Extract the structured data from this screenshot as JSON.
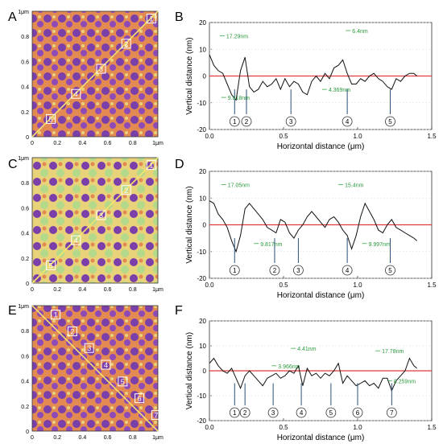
{
  "panel_letters": [
    "A",
    "B",
    "C",
    "D",
    "E",
    "F"
  ],
  "afm": {
    "unit_label": "1μm",
    "x_ticks": [
      "0",
      "0.2",
      "0.4",
      "0.6",
      "0.8",
      "1μm"
    ],
    "y_ticks": [
      "1μm",
      "0.8",
      "0.6",
      "0.4",
      "0.2",
      "0"
    ],
    "markers": [
      [
        "1",
        "2",
        "3",
        "4",
        "5"
      ],
      [
        "1",
        "2",
        "3",
        "4",
        "5"
      ],
      [
        "1",
        "2",
        "3",
        "4",
        "5",
        "6",
        "7"
      ]
    ],
    "colors": {
      "purple": "#7a3fa8",
      "orange": "#e38a52",
      "yellow": "#e8d27a",
      "green": "#b3d98a",
      "line": "#f5e36a"
    }
  },
  "chart_data": [
    {
      "type": "line",
      "panel": "B",
      "xlabel": "Horizontal distance (μm)",
      "ylabel": "Vertical distance (nm)",
      "xlim": [
        0,
        1.5
      ],
      "ylim": [
        -20,
        20
      ],
      "xticks": [
        "0.0",
        "0.5",
        "1.0",
        "1.5"
      ],
      "yticks": [
        "20",
        "10",
        "0",
        "-10",
        "-20"
      ],
      "baseline": 0,
      "series": [
        {
          "x": [
            0,
            0.03,
            0.06,
            0.09,
            0.12,
            0.15,
            0.18,
            0.21,
            0.24,
            0.27,
            0.3,
            0.33,
            0.36,
            0.39,
            0.42,
            0.45,
            0.48,
            0.51,
            0.54,
            0.57,
            0.6,
            0.63,
            0.66,
            0.69,
            0.72,
            0.75,
            0.78,
            0.81,
            0.84,
            0.87,
            0.9,
            0.93,
            0.96,
            0.99,
            1.02,
            1.05,
            1.08,
            1.11,
            1.14,
            1.17,
            1.2,
            1.23,
            1.26,
            1.29,
            1.32,
            1.35,
            1.38,
            1.4
          ],
          "y": [
            8,
            4,
            2,
            1,
            -3,
            -7,
            -9,
            2,
            7,
            -4,
            -6,
            -5,
            -2,
            -4,
            -3,
            -1,
            -5,
            -1,
            -4,
            -2,
            -3,
            -6,
            -7,
            -2,
            0,
            -2,
            1,
            -1,
            3,
            4,
            6,
            1,
            -3,
            -3,
            -1,
            -2,
            0,
            1,
            -1,
            -2,
            -4,
            -5,
            -1,
            -2,
            0,
            1,
            1,
            0
          ]
        }
      ],
      "annotations": [
        {
          "label": "17.29nm",
          "x": 0.07,
          "y": 15
        },
        {
          "label": "9.818nm",
          "x": 0.08,
          "y": -8
        },
        {
          "label": "6.4nm",
          "x": 0.92,
          "y": 17
        },
        {
          "label": "4.369nm",
          "x": 0.76,
          "y": -5
        }
      ],
      "points": [
        {
          "label": "1",
          "x": 0.17
        },
        {
          "label": "2",
          "x": 0.25
        },
        {
          "label": "3",
          "x": 0.55
        },
        {
          "label": "4",
          "x": 0.93
        },
        {
          "label": "5",
          "x": 1.22
        }
      ]
    },
    {
      "type": "line",
      "panel": "D",
      "xlabel": "Horizontal distance (μm)",
      "ylabel": "Vertical distance (nm)",
      "xlim": [
        0,
        1.5
      ],
      "ylim": [
        -20,
        20
      ],
      "xticks": [
        "0.0",
        "0.5",
        "1.0",
        "1.5"
      ],
      "yticks": [
        "20",
        "10",
        "0",
        "-10",
        "-20"
      ],
      "baseline": 0,
      "series": [
        {
          "x": [
            0,
            0.03,
            0.06,
            0.09,
            0.12,
            0.15,
            0.18,
            0.21,
            0.24,
            0.27,
            0.3,
            0.33,
            0.36,
            0.39,
            0.42,
            0.45,
            0.48,
            0.51,
            0.54,
            0.57,
            0.6,
            0.63,
            0.66,
            0.69,
            0.72,
            0.75,
            0.78,
            0.81,
            0.84,
            0.87,
            0.9,
            0.93,
            0.96,
            0.99,
            1.02,
            1.05,
            1.08,
            1.11,
            1.14,
            1.17,
            1.2,
            1.23,
            1.26,
            1.29,
            1.32,
            1.35,
            1.38,
            1.4
          ],
          "y": [
            9,
            8,
            4,
            2,
            -1,
            -6,
            -10,
            -4,
            6,
            8,
            6,
            4,
            2,
            -1,
            -2,
            -3,
            2,
            1,
            -3,
            -5,
            -2,
            0,
            3,
            5,
            3,
            1,
            -1,
            2,
            3,
            1,
            -2,
            -4,
            -9,
            -4,
            3,
            8,
            5,
            2,
            -2,
            -3,
            0,
            2,
            -1,
            -2,
            -3,
            -4,
            -5,
            -6
          ]
        }
      ],
      "annotations": [
        {
          "label": "17.05nm",
          "x": 0.08,
          "y": 15
        },
        {
          "label": "9.817nm",
          "x": 0.3,
          "y": -7
        },
        {
          "label": "15.4nm",
          "x": 0.87,
          "y": 15
        },
        {
          "label": "9.997nm",
          "x": 1.03,
          "y": -7
        }
      ],
      "points": [
        {
          "label": "1",
          "x": 0.17
        },
        {
          "label": "2",
          "x": 0.44
        },
        {
          "label": "3",
          "x": 0.6
        },
        {
          "label": "4",
          "x": 0.93
        },
        {
          "label": "5",
          "x": 1.22
        }
      ]
    },
    {
      "type": "line",
      "panel": "F",
      "xlabel": "Horizontal distance (μm)",
      "ylabel": "Vertical distance (nm)",
      "xlim": [
        0,
        1.5
      ],
      "ylim": [
        -20,
        20
      ],
      "xticks": [
        "0.0",
        "0.5",
        "1.0",
        "1.5"
      ],
      "yticks": [
        "20",
        "10",
        "0",
        "-10",
        "-20"
      ],
      "baseline": 0,
      "series": [
        {
          "x": [
            0,
            0.03,
            0.06,
            0.09,
            0.12,
            0.15,
            0.18,
            0.21,
            0.24,
            0.27,
            0.3,
            0.33,
            0.36,
            0.39,
            0.42,
            0.45,
            0.48,
            0.51,
            0.54,
            0.57,
            0.6,
            0.63,
            0.66,
            0.69,
            0.72,
            0.75,
            0.78,
            0.81,
            0.84,
            0.87,
            0.9,
            0.93,
            0.96,
            0.99,
            1.02,
            1.05,
            1.08,
            1.11,
            1.14,
            1.17,
            1.2,
            1.23,
            1.26,
            1.29,
            1.32,
            1.35,
            1.38,
            1.4
          ],
          "y": [
            3,
            5,
            2,
            0,
            -1,
            1,
            -3,
            -7,
            -2,
            0,
            -2,
            -4,
            -6,
            -3,
            -2,
            -1,
            -3,
            -2,
            0,
            -1,
            2,
            -6,
            1,
            -2,
            -1,
            -3,
            -1,
            -2,
            0,
            3,
            -5,
            -2,
            -4,
            -6,
            -5,
            -4,
            -6,
            -5,
            -7,
            -3,
            -3,
            -8,
            -4,
            -2,
            0,
            5,
            2,
            1
          ]
        }
      ],
      "annotations": [
        {
          "label": "3.966nm",
          "x": 0.42,
          "y": 2
        },
        {
          "label": "4.41nm",
          "x": 0.55,
          "y": 9
        },
        {
          "label": "17.78nm",
          "x": 1.12,
          "y": 8
        },
        {
          "label": "8.259nm",
          "x": 1.2,
          "y": -4
        }
      ],
      "points": [
        {
          "label": "1",
          "x": 0.17
        },
        {
          "label": "2",
          "x": 0.24
        },
        {
          "label": "3",
          "x": 0.43
        },
        {
          "label": "4",
          "x": 0.62
        },
        {
          "label": "5",
          "x": 0.82
        },
        {
          "label": "6",
          "x": 1.0
        },
        {
          "label": "7",
          "x": 1.23
        }
      ]
    }
  ]
}
